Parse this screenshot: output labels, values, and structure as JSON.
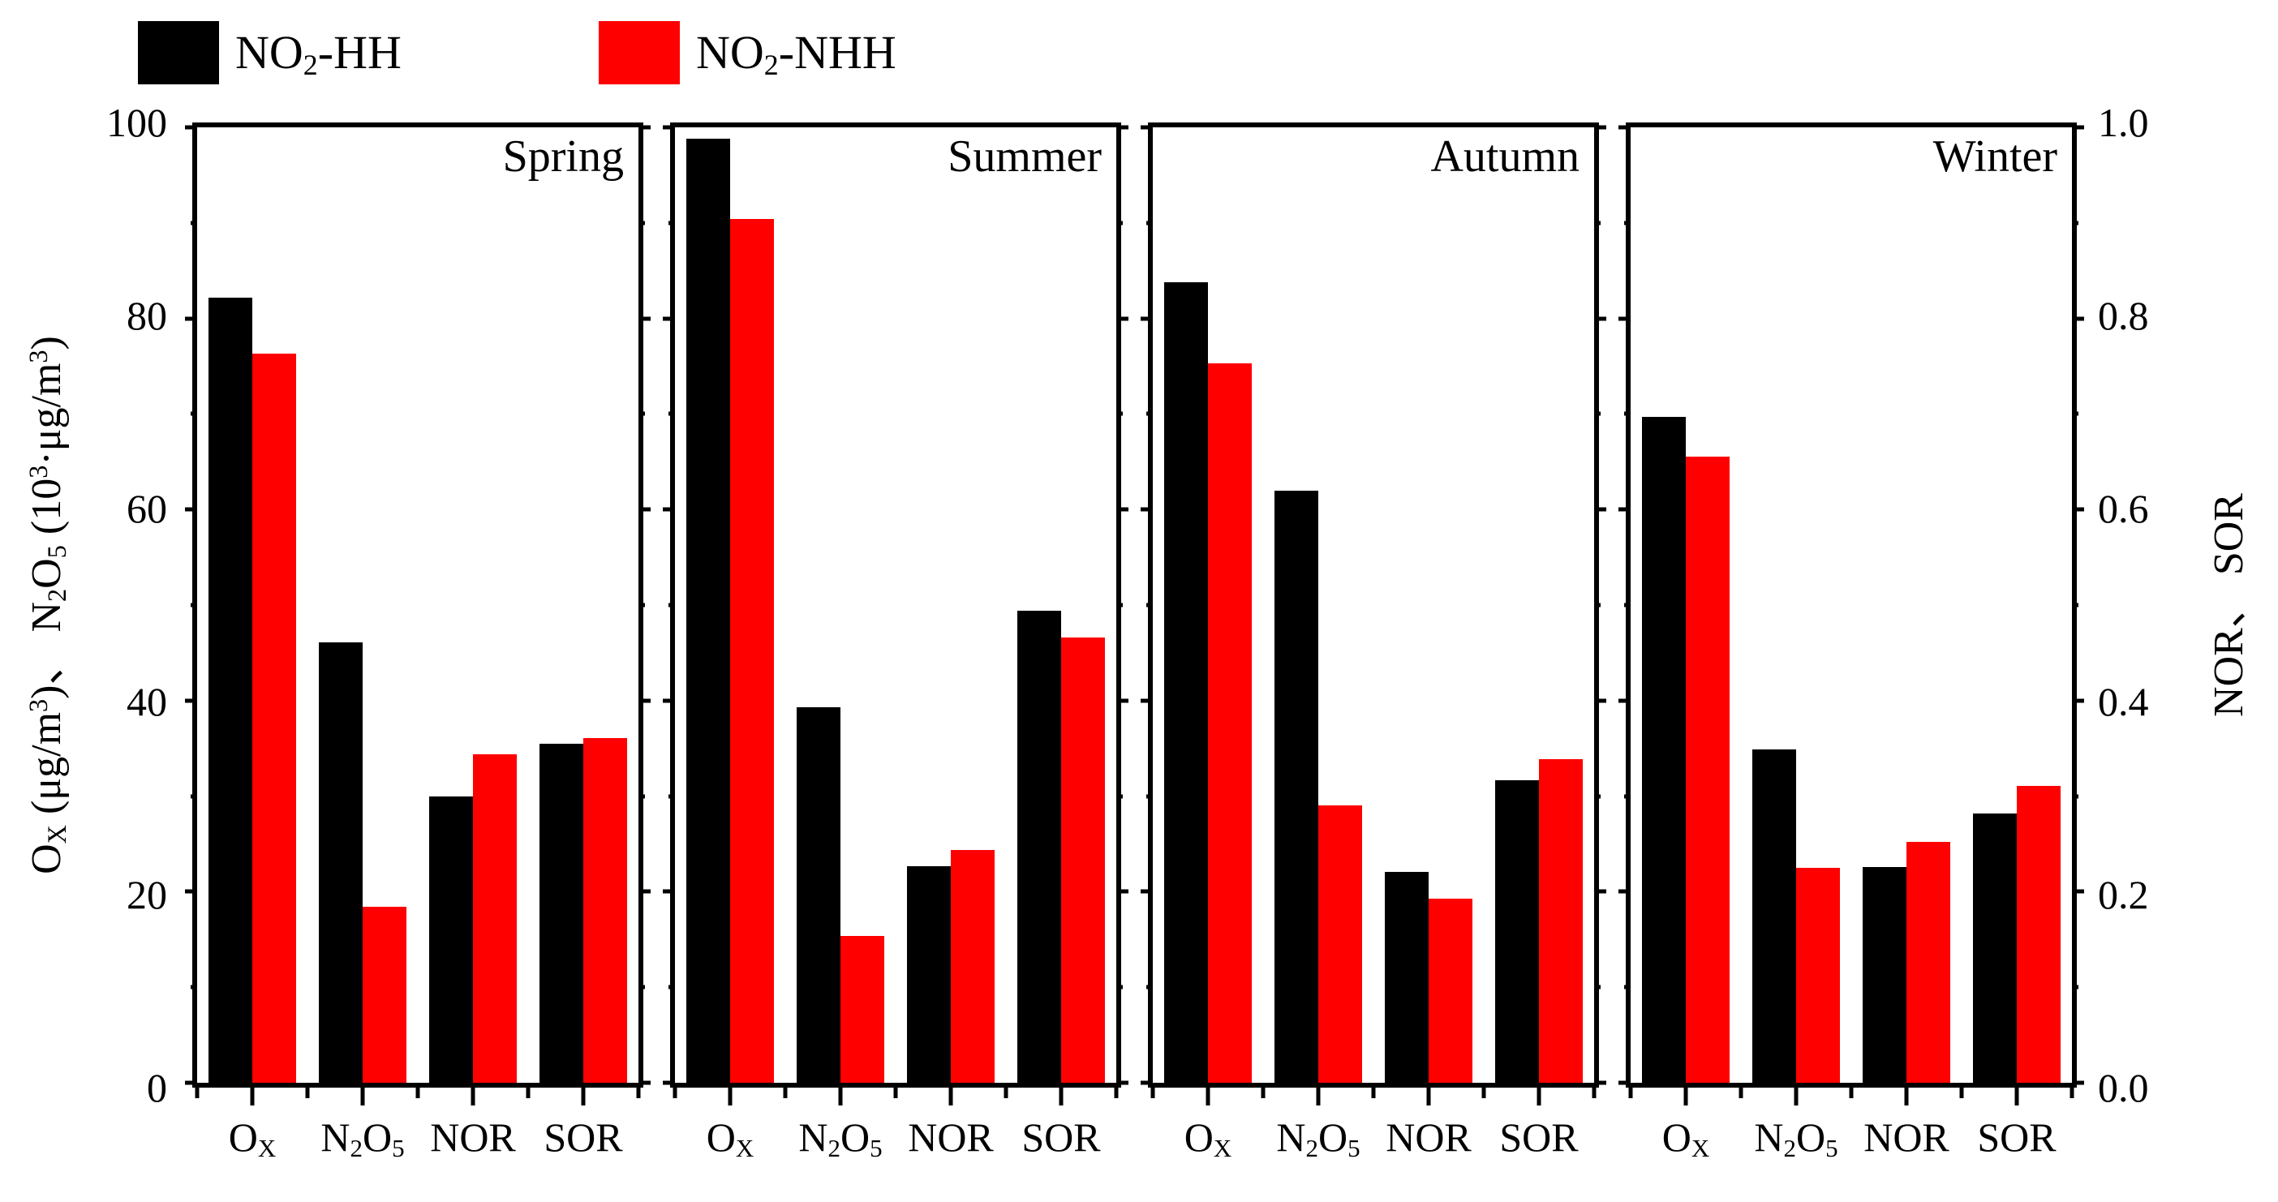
{
  "figure": {
    "background": "#ffffff"
  },
  "legend": {
    "position": "top-left",
    "items": [
      {
        "name": "NO2-HH",
        "color": "#000000",
        "segments": [
          {
            "t": "NO"
          },
          {
            "t": "2",
            "s": "sub"
          },
          {
            "t": "-HH"
          }
        ]
      },
      {
        "name": "NO2-NHH",
        "color": "#ff0000",
        "segments": [
          {
            "t": "NO"
          },
          {
            "t": "2",
            "s": "sub"
          },
          {
            "t": "-NHH"
          }
        ]
      }
    ]
  },
  "axes": {
    "left": {
      "title_segments": [
        {
          "t": "O"
        },
        {
          "t": "X",
          "s": "sub"
        },
        {
          "t": " (μg/m"
        },
        {
          "t": "3",
          "s": "sup"
        },
        {
          "t": ")、 N"
        },
        {
          "t": "2",
          "s": "sub"
        },
        {
          "t": "O"
        },
        {
          "t": "5",
          "s": "sub"
        },
        {
          "t": " (10"
        },
        {
          "t": "3",
          "s": "sup"
        },
        {
          "t": "·μg/m"
        },
        {
          "t": "3",
          "s": "sup"
        },
        {
          "t": ")"
        }
      ],
      "range": [
        0,
        100
      ],
      "major_tick_values": [
        0,
        20,
        40,
        60,
        80,
        100
      ],
      "minor_tick_values": [
        10,
        30,
        50,
        70,
        90
      ],
      "tick_labels": [
        "0",
        "20",
        "40",
        "60",
        "80",
        "100"
      ]
    },
    "right": {
      "title_segments": [
        {
          "t": "NOR、 SOR"
        }
      ],
      "range": [
        0,
        1
      ],
      "tick_labels": [
        "0.0",
        "0.2",
        "0.4",
        "0.6",
        "0.8",
        "1.0"
      ]
    },
    "x": {
      "categories": [
        {
          "key": "OX",
          "segments": [
            {
              "t": "O"
            },
            {
              "t": "X",
              "s": "sub"
            }
          ]
        },
        {
          "key": "N2O5",
          "segments": [
            {
              "t": "N"
            },
            {
              "t": "2",
              "s": "sub"
            },
            {
              "t": "O"
            },
            {
              "t": "5",
              "s": "sub"
            }
          ]
        },
        {
          "key": "NOR",
          "segments": [
            {
              "t": "NOR"
            }
          ]
        },
        {
          "key": "SOR",
          "segments": [
            {
              "t": "SOR"
            }
          ]
        }
      ]
    }
  },
  "chart_data": {
    "type": "bar",
    "layout": "4 side-by-side season panels, 4 categories per panel, 2 series per category",
    "series_names": [
      "NO2-HH",
      "NO2-NHH"
    ],
    "series_colors": {
      "NO2-HH": "#000000",
      "NO2-NHH": "#ff0000"
    },
    "axis_assignment": {
      "OX": "left",
      "N2O5": "left",
      "NOR": "right",
      "SOR": "right"
    },
    "left_axis": {
      "label": "OX (μg/m3)、 N2O5 (103·μg/m3)",
      "range": [
        0,
        100
      ],
      "grid": false
    },
    "right_axis": {
      "label": "NOR、 SOR",
      "range": [
        0.0,
        1.0
      ]
    },
    "panels": [
      {
        "title": "Spring",
        "values": {
          "OX": {
            "NO2-HH": 82.2,
            "NO2-NHH": 76.3
          },
          "N2O5": {
            "NO2-HH": 46.1,
            "NO2-NHH": 18.4
          },
          "NOR": {
            "NO2-HH": 0.3,
            "NO2-NHH": 0.344
          },
          "SOR": {
            "NO2-HH": 0.355,
            "NO2-NHH": 0.361
          }
        }
      },
      {
        "title": "Summer",
        "values": {
          "OX": {
            "NO2-HH": 98.8,
            "NO2-NHH": 90.4
          },
          "N2O5": {
            "NO2-HH": 39.3,
            "NO2-NHH": 15.4
          },
          "NOR": {
            "NO2-HH": 0.227,
            "NO2-NHH": 0.244
          },
          "SOR": {
            "NO2-HH": 0.494,
            "NO2-NHH": 0.466
          }
        }
      },
      {
        "title": "Autumn",
        "values": {
          "OX": {
            "NO2-HH": 83.8,
            "NO2-NHH": 75.3
          },
          "N2O5": {
            "NO2-HH": 62.0,
            "NO2-NHH": 29.0
          },
          "NOR": {
            "NO2-HH": 0.221,
            "NO2-NHH": 0.193
          },
          "SOR": {
            "NO2-HH": 0.317,
            "NO2-NHH": 0.339
          }
        }
      },
      {
        "title": "Winter",
        "values": {
          "OX": {
            "NO2-HH": 69.7,
            "NO2-NHH": 65.5
          },
          "N2O5": {
            "NO2-HH": 34.9,
            "NO2-NHH": 22.5
          },
          "NOR": {
            "NO2-HH": 0.226,
            "NO2-NHH": 0.252
          },
          "SOR": {
            "NO2-HH": 0.282,
            "NO2-NHH": 0.311
          }
        }
      }
    ]
  }
}
